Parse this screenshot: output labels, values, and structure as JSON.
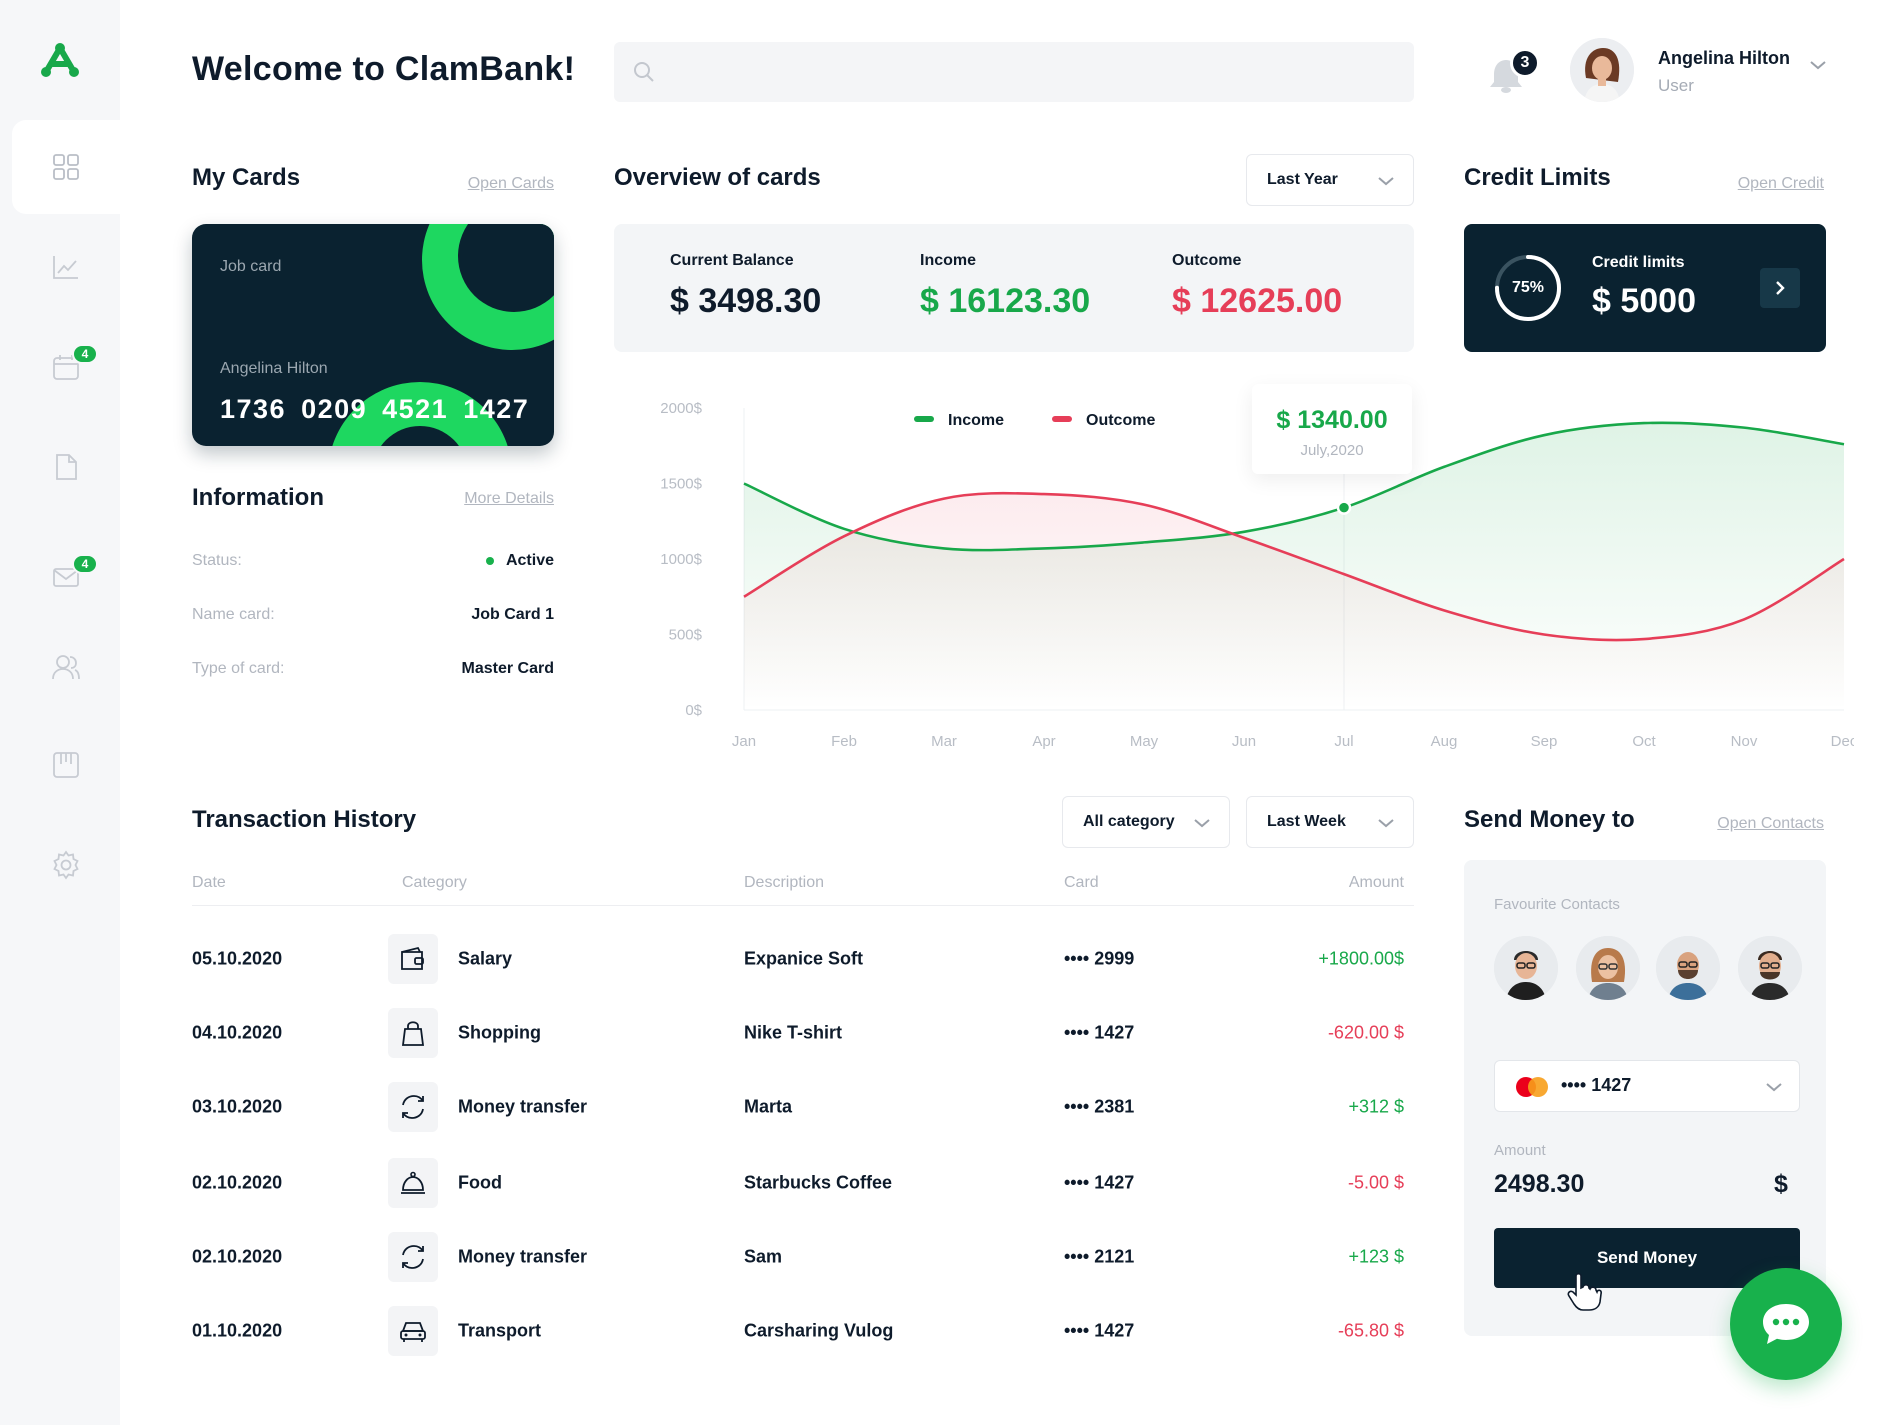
{
  "header": {
    "welcome": "Welcome to ClamBank!",
    "search_placeholder": "",
    "notifications_count": "3",
    "user_name": "Angelina Hilton",
    "user_role": "User"
  },
  "sidebar": {
    "items": [
      {
        "name": "dashboard",
        "icon": "grid-icon",
        "badge": ""
      },
      {
        "name": "analytics",
        "icon": "chart-line-icon",
        "badge": ""
      },
      {
        "name": "calendar",
        "icon": "calendar-icon",
        "badge": "4"
      },
      {
        "name": "documents",
        "icon": "document-icon",
        "badge": ""
      },
      {
        "name": "messages",
        "icon": "mail-icon",
        "badge": "4"
      },
      {
        "name": "contacts",
        "icon": "users-icon",
        "badge": ""
      },
      {
        "name": "board",
        "icon": "board-icon",
        "badge": ""
      },
      {
        "name": "settings",
        "icon": "gear-icon",
        "badge": ""
      }
    ]
  },
  "my_cards": {
    "title": "My Cards",
    "link": "Open Cards",
    "card": {
      "label": "Job card",
      "holder": "Angelina Hilton",
      "number": "1736 0209 4521 1427"
    }
  },
  "information": {
    "title": "Information",
    "link": "More Details",
    "rows": [
      {
        "label": "Status:",
        "value": "Active"
      },
      {
        "label": "Name card:",
        "value": "Job Card 1"
      },
      {
        "label": "Type of card:",
        "value": "Master Card"
      }
    ]
  },
  "overview": {
    "title": "Overview of cards",
    "period": "Last Year",
    "current_balance_label": "Current Balance",
    "current_balance": "$ 3498.30",
    "income_label": "Income",
    "income": "$ 16123.30",
    "outcome_label": "Outcome",
    "outcome": "$ 12625.00"
  },
  "credit": {
    "title": "Credit Limits",
    "link": "Open Credit",
    "percent_label": "75%",
    "percent": 0.75,
    "label": "Credit limits",
    "value": "$ 5000"
  },
  "chart_data": {
    "type": "area",
    "x": [
      "Jan",
      "Feb",
      "Mar",
      "Apr",
      "May",
      "Jun",
      "Jul",
      "Aug",
      "Sep",
      "Oct",
      "Nov",
      "Dec"
    ],
    "y_ticks": [
      "2000$",
      "1500$",
      "1000$",
      "500$",
      "0$"
    ],
    "ylim": [
      0,
      2000
    ],
    "series": [
      {
        "name": "Income",
        "color": "#18a84a",
        "values": [
          1500,
          1200,
          1070,
          1070,
          1110,
          1180,
          1340,
          1610,
          1820,
          1900,
          1870,
          1760
        ]
      },
      {
        "name": "Outcome",
        "color": "#e63e58",
        "values": [
          750,
          1150,
          1400,
          1430,
          1360,
          1140,
          900,
          660,
          500,
          470,
          600,
          1000
        ]
      }
    ],
    "tooltip": {
      "value": "$ 1340.00",
      "date": "July,2020"
    },
    "legend": "top-left"
  },
  "transactions": {
    "title": "Transaction History",
    "category_filter": "All category",
    "period_filter": "Last Week",
    "columns": [
      "Date",
      "Category",
      "Description",
      "Card",
      "Amount"
    ],
    "rows": [
      {
        "date": "05.10.2020",
        "icon": "wallet-icon",
        "category": "Salary",
        "description": "Expanice Soft",
        "card": "•••• 2999",
        "amount": "+1800.00$",
        "positive": true
      },
      {
        "date": "04.10.2020",
        "icon": "shopping-bag-icon",
        "category": "Shopping",
        "description": "Nike T-shirt",
        "card": "•••• 1427",
        "amount": "-620.00 $",
        "positive": false
      },
      {
        "date": "03.10.2020",
        "icon": "transfer-icon",
        "category": "Money transfer",
        "description": "Marta",
        "card": "•••• 2381",
        "amount": "+312 $",
        "positive": true
      },
      {
        "date": "02.10.2020",
        "icon": "food-cloche-icon",
        "category": "Food",
        "description": "Starbucks Coffee",
        "card": "•••• 1427",
        "amount": "-5.00 $",
        "positive": false
      },
      {
        "date": "02.10.2020",
        "icon": "transfer-icon",
        "category": "Money transfer",
        "description": "Sam",
        "card": "•••• 2121",
        "amount": "+123 $",
        "positive": true
      },
      {
        "date": "01.10.2020",
        "icon": "car-icon",
        "category": "Transport",
        "description": "Carsharing Vulog",
        "card": "•••• 1427",
        "amount": "-65.80 $",
        "positive": false
      }
    ]
  },
  "send_money": {
    "title": "Send Money to",
    "link": "Open Contacts",
    "favourites_label": "Favourite Contacts",
    "card": "•••• 1427",
    "amount_label": "Amount",
    "amount": "2498.30",
    "currency": "$",
    "button": "Send Money"
  },
  "colors": {
    "navy": "#0a2230",
    "green": "#18a84a",
    "red": "#e63e58"
  }
}
